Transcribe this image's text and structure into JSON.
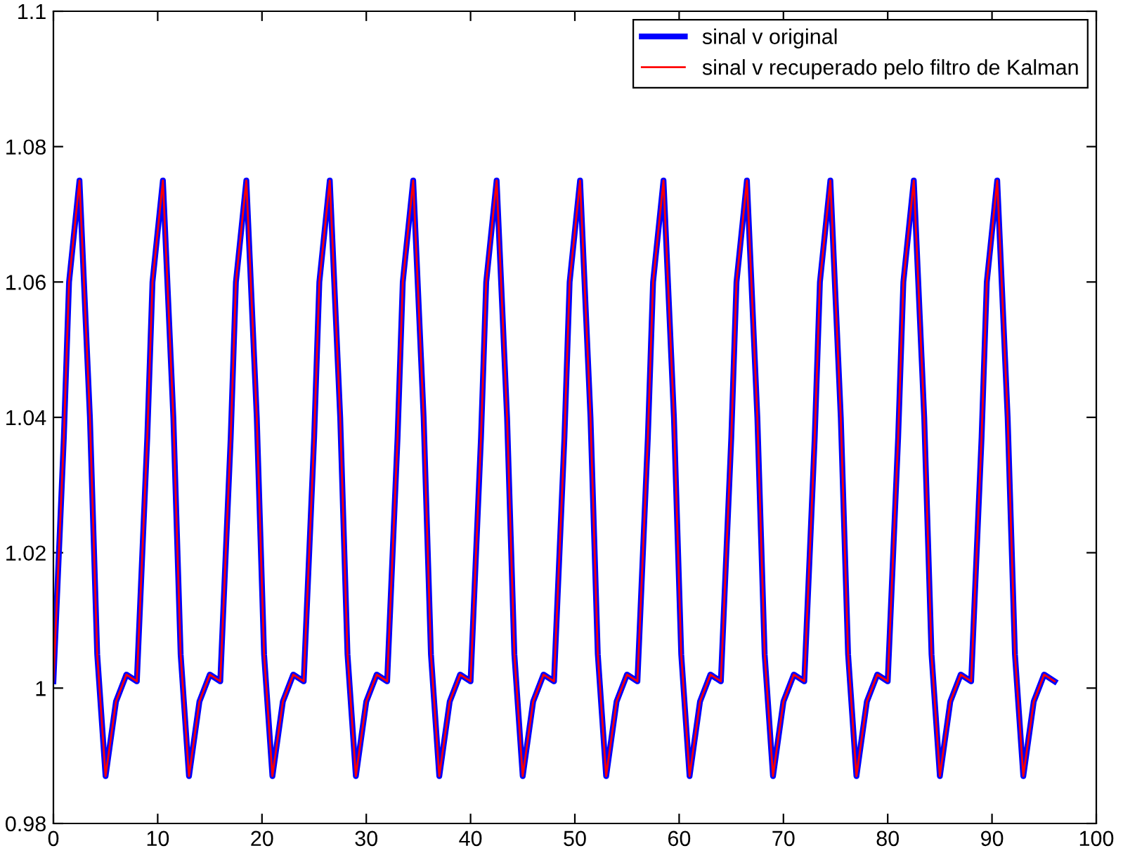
{
  "chart_data": {
    "type": "line",
    "x": [
      0,
      1,
      1.5,
      2.5,
      3.5,
      4.2,
      5,
      6,
      7,
      8,
      9,
      9.5,
      10.5,
      11.5,
      12.2,
      13,
      14,
      15,
      16,
      17,
      17.5,
      18.5,
      19.5,
      20.2,
      21,
      22,
      23,
      24,
      25,
      25.5,
      26.5,
      27.5,
      28.2,
      29,
      30,
      31,
      32,
      33,
      33.5,
      34.5,
      35.5,
      36.2,
      37,
      38,
      39,
      40,
      41,
      41.5,
      42.5,
      43.5,
      44.2,
      45,
      46,
      47,
      48,
      49,
      49.5,
      50.5,
      51.5,
      52.2,
      53,
      54,
      55,
      56,
      57,
      57.5,
      58.5,
      59.5,
      60.2,
      61,
      62,
      63,
      64,
      65,
      65.5,
      66.5,
      67.5,
      68.2,
      69,
      70,
      71,
      72,
      73,
      73.5,
      74.5,
      75.5,
      76.2,
      77,
      78,
      79,
      80,
      81,
      81.5,
      82.5,
      83.5,
      84.2,
      85,
      86,
      87,
      88,
      89,
      89.5,
      90.5,
      91.5,
      92.2,
      93,
      94,
      95,
      96
    ],
    "series": [
      {
        "name": "sinal v original",
        "color": "#0000ff",
        "values": [
          1.001,
          1.037,
          1.06,
          1.075,
          1.04,
          1.005,
          0.987,
          0.998,
          1.002,
          1.001,
          1.037,
          1.06,
          1.075,
          1.04,
          1.005,
          0.987,
          0.998,
          1.002,
          1.001,
          1.037,
          1.06,
          1.075,
          1.04,
          1.005,
          0.987,
          0.998,
          1.002,
          1.001,
          1.037,
          1.06,
          1.075,
          1.04,
          1.005,
          0.987,
          0.998,
          1.002,
          1.001,
          1.037,
          1.06,
          1.075,
          1.04,
          1.005,
          0.987,
          0.998,
          1.002,
          1.001,
          1.037,
          1.06,
          1.075,
          1.04,
          1.005,
          0.987,
          0.998,
          1.002,
          1.001,
          1.037,
          1.06,
          1.075,
          1.04,
          1.005,
          0.987,
          0.998,
          1.002,
          1.001,
          1.037,
          1.06,
          1.075,
          1.04,
          1.005,
          0.987,
          0.998,
          1.002,
          1.001,
          1.037,
          1.06,
          1.075,
          1.04,
          1.005,
          0.987,
          0.998,
          1.002,
          1.001,
          1.037,
          1.06,
          1.075,
          1.04,
          1.005,
          0.987,
          0.998,
          1.002,
          1.001,
          1.037,
          1.06,
          1.075,
          1.04,
          1.005,
          0.987,
          0.998,
          1.002,
          1.001,
          1.037,
          1.06,
          1.075,
          1.04,
          1.005,
          0.987,
          0.998,
          1.002,
          1.001
        ]
      },
      {
        "name": "sinal v recuperado pelo filtro de Kalman",
        "color": "#ff0000",
        "values": [
          1.001,
          1.037,
          1.06,
          1.075,
          1.04,
          1.005,
          0.987,
          0.998,
          1.002,
          1.001,
          1.037,
          1.06,
          1.075,
          1.04,
          1.005,
          0.987,
          0.998,
          1.002,
          1.001,
          1.037,
          1.06,
          1.075,
          1.04,
          1.005,
          0.987,
          0.998,
          1.002,
          1.001,
          1.037,
          1.06,
          1.075,
          1.04,
          1.005,
          0.987,
          0.998,
          1.002,
          1.001,
          1.037,
          1.06,
          1.075,
          1.04,
          1.005,
          0.987,
          0.998,
          1.002,
          1.001,
          1.037,
          1.06,
          1.075,
          1.04,
          1.005,
          0.987,
          0.998,
          1.002,
          1.001,
          1.037,
          1.06,
          1.075,
          1.04,
          1.005,
          0.987,
          0.998,
          1.002,
          1.001,
          1.037,
          1.06,
          1.075,
          1.04,
          1.005,
          0.987,
          0.998,
          1.002,
          1.001,
          1.037,
          1.06,
          1.075,
          1.04,
          1.005,
          0.987,
          0.998,
          1.002,
          1.001,
          1.037,
          1.06,
          1.075,
          1.04,
          1.005,
          0.987,
          0.998,
          1.002,
          1.001,
          1.037,
          1.06,
          1.075,
          1.04,
          1.005,
          0.987,
          0.998,
          1.002,
          1.001,
          1.037,
          1.06,
          1.075,
          1.04,
          1.005,
          0.987,
          0.998,
          1.002,
          1.001
        ]
      }
    ],
    "xlim": [
      0,
      100
    ],
    "xticks": [
      0,
      10,
      20,
      30,
      40,
      50,
      60,
      70,
      80,
      90,
      100
    ],
    "ylim": [
      0.98,
      1.1
    ],
    "yticks": [
      0.98,
      1,
      1.02,
      1.04,
      1.06,
      1.08,
      1.1
    ],
    "legend": "top right",
    "grid": false
  }
}
